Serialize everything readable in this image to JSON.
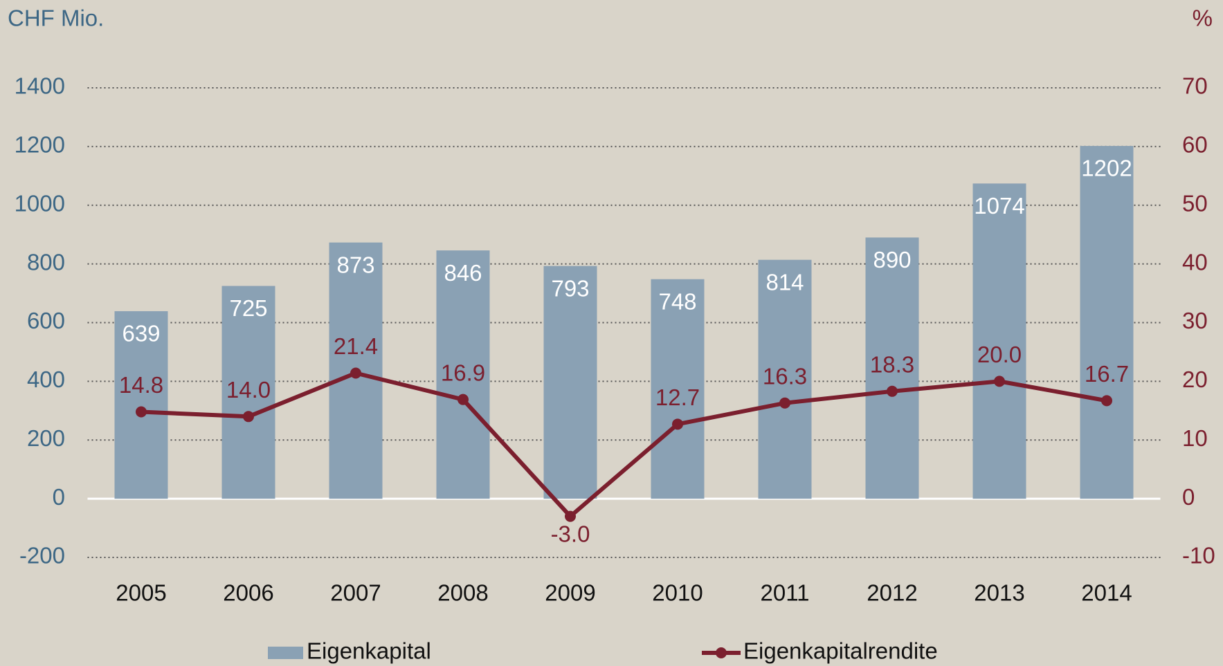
{
  "chart_data": {
    "type": "bar-line",
    "y_label": "CHF Mio.",
    "y2_label": "%",
    "categories": [
      "2005",
      "2006",
      "2007",
      "2008",
      "2009",
      "2010",
      "2011",
      "2012",
      "2013",
      "2014"
    ],
    "series": [
      {
        "name": "Eigenkapital",
        "type": "bar",
        "color": "#8aa1b4",
        "values": [
          639,
          725,
          873,
          846,
          793,
          748,
          814,
          890,
          1074,
          1202
        ]
      },
      {
        "name": "Eigenkapitalrendite",
        "type": "line",
        "axis": "y2",
        "color": "#7b1f2e",
        "values": [
          14.8,
          14.0,
          21.4,
          16.9,
          -3.0,
          12.7,
          16.3,
          18.3,
          20.0,
          16.7
        ],
        "value_labels": [
          "14.8",
          "14.0",
          "21.4",
          "16.9",
          "-3.0",
          "12.7",
          "16.3",
          "18.3",
          "20.0",
          "16.7"
        ]
      }
    ],
    "ylim": [
      -200,
      1400
    ],
    "yticks": [
      -200,
      0,
      200,
      400,
      600,
      800,
      1000,
      1200,
      1400
    ],
    "y2lim": [
      -10,
      70
    ],
    "y2ticks": [
      -10,
      0,
      10,
      20,
      30,
      40,
      50,
      60,
      70
    ],
    "grid": true,
    "legend": "bottom"
  }
}
